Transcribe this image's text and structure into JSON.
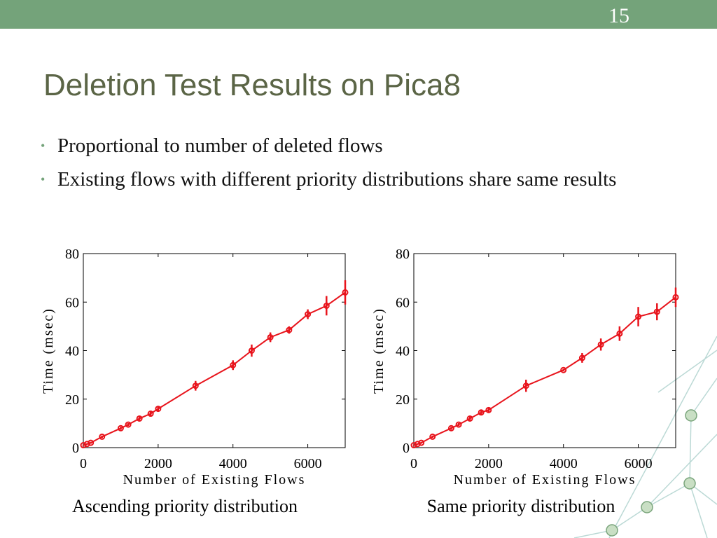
{
  "slide": {
    "number": "15",
    "title": "Deletion Test Results on Pica8",
    "bullets": [
      "Proportional to number of deleted flows",
      "Existing flows with different priority distributions share same results"
    ]
  },
  "chart_data": [
    {
      "type": "line",
      "caption": "Ascending priority distribution",
      "xlabel": "Number of Existing Flows",
      "ylabel": "Time (msec)",
      "x": [
        0,
        100,
        200,
        500,
        1000,
        1200,
        1500,
        1800,
        2000,
        3000,
        4000,
        4500,
        5000,
        5500,
        6000,
        6500,
        7000
      ],
      "series": [
        {
          "color": "#e8141c",
          "values": [
            1,
            1.5,
            2,
            4.5,
            8,
            9.5,
            12,
            14,
            16,
            25.5,
            34,
            40,
            45.5,
            48.5,
            55,
            58.5,
            64
          ],
          "errors": [
            0.3,
            0.3,
            0.4,
            0.5,
            0.6,
            0.6,
            0.7,
            0.8,
            0.8,
            2,
            2,
            2.5,
            2,
            1.5,
            2,
            4,
            5
          ]
        }
      ],
      "xlim": [
        0,
        7000
      ],
      "ylim": [
        0,
        80
      ],
      "xticks": [
        0,
        2000,
        4000,
        6000
      ],
      "yticks": [
        0,
        20,
        40,
        60,
        80
      ]
    },
    {
      "type": "line",
      "caption": "Same priority distribution",
      "xlabel": "Number of Existing Flows",
      "ylabel": "Time (msec)",
      "x": [
        0,
        100,
        200,
        500,
        1000,
        1200,
        1500,
        1800,
        2000,
        3000,
        4000,
        4500,
        5000,
        5500,
        6000,
        6500,
        7000
      ],
      "series": [
        {
          "color": "#e8141c",
          "values": [
            1,
            1.5,
            2,
            4.5,
            8,
            9.5,
            12,
            14.5,
            15.5,
            25.5,
            32,
            37,
            42.5,
            47,
            54,
            56,
            62
          ],
          "errors": [
            0.3,
            0.3,
            0.4,
            0.5,
            0.6,
            0.6,
            0.7,
            0.8,
            0.8,
            2.5,
            0.5,
            2,
            2.5,
            3,
            4,
            3.5,
            4
          ]
        }
      ],
      "xlim": [
        0,
        7000
      ],
      "ylim": [
        0,
        80
      ],
      "xticks": [
        0,
        2000,
        4000,
        6000
      ],
      "yticks": [
        0,
        20,
        40,
        60,
        80
      ]
    }
  ]
}
